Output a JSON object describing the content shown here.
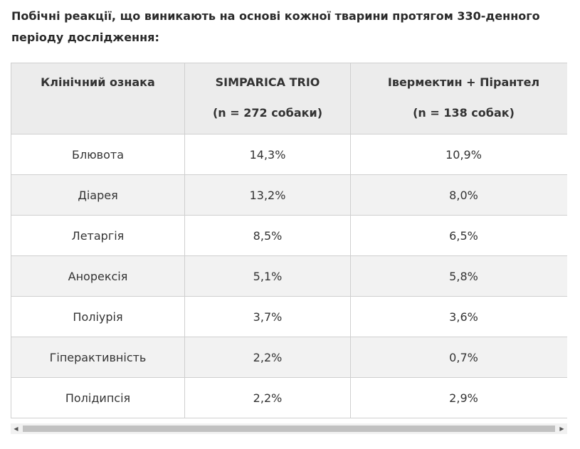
{
  "caption": "Побічні реакції, що виникають на основі кожної тварини протягом 330-денного періоду дослідження:",
  "table": {
    "headers": [
      {
        "line1": "Клінічний ознака",
        "line2": ""
      },
      {
        "line1": "SIMPARICA TRIO",
        "line2": "(n = 272 собаки)"
      },
      {
        "line1": "Івермектин + Пірантел",
        "line2": "(n = 138 собак)"
      }
    ],
    "rows": [
      {
        "sign": "Блювота",
        "simparica": "14,3%",
        "ivermectin": "10,9%"
      },
      {
        "sign": "Діарея",
        "simparica": "13,2%",
        "ivermectin": "8,0%"
      },
      {
        "sign": "Летаргія",
        "simparica": "8,5%",
        "ivermectin": "6,5%"
      },
      {
        "sign": "Анорексія",
        "simparica": "5,1%",
        "ivermectin": "5,8%"
      },
      {
        "sign": "Поліурія",
        "simparica": "3,7%",
        "ivermectin": "3,6%"
      },
      {
        "sign": "Гіперактивність",
        "simparica": "2,2%",
        "ivermectin": "0,7%"
      },
      {
        "sign": "Полідипсія",
        "simparica": "2,2%",
        "ivermectin": "2,9%"
      }
    ]
  },
  "scrollbar": {
    "left_arrow_icon": "triangle-left-icon",
    "right_arrow_icon": "triangle-right-icon"
  }
}
